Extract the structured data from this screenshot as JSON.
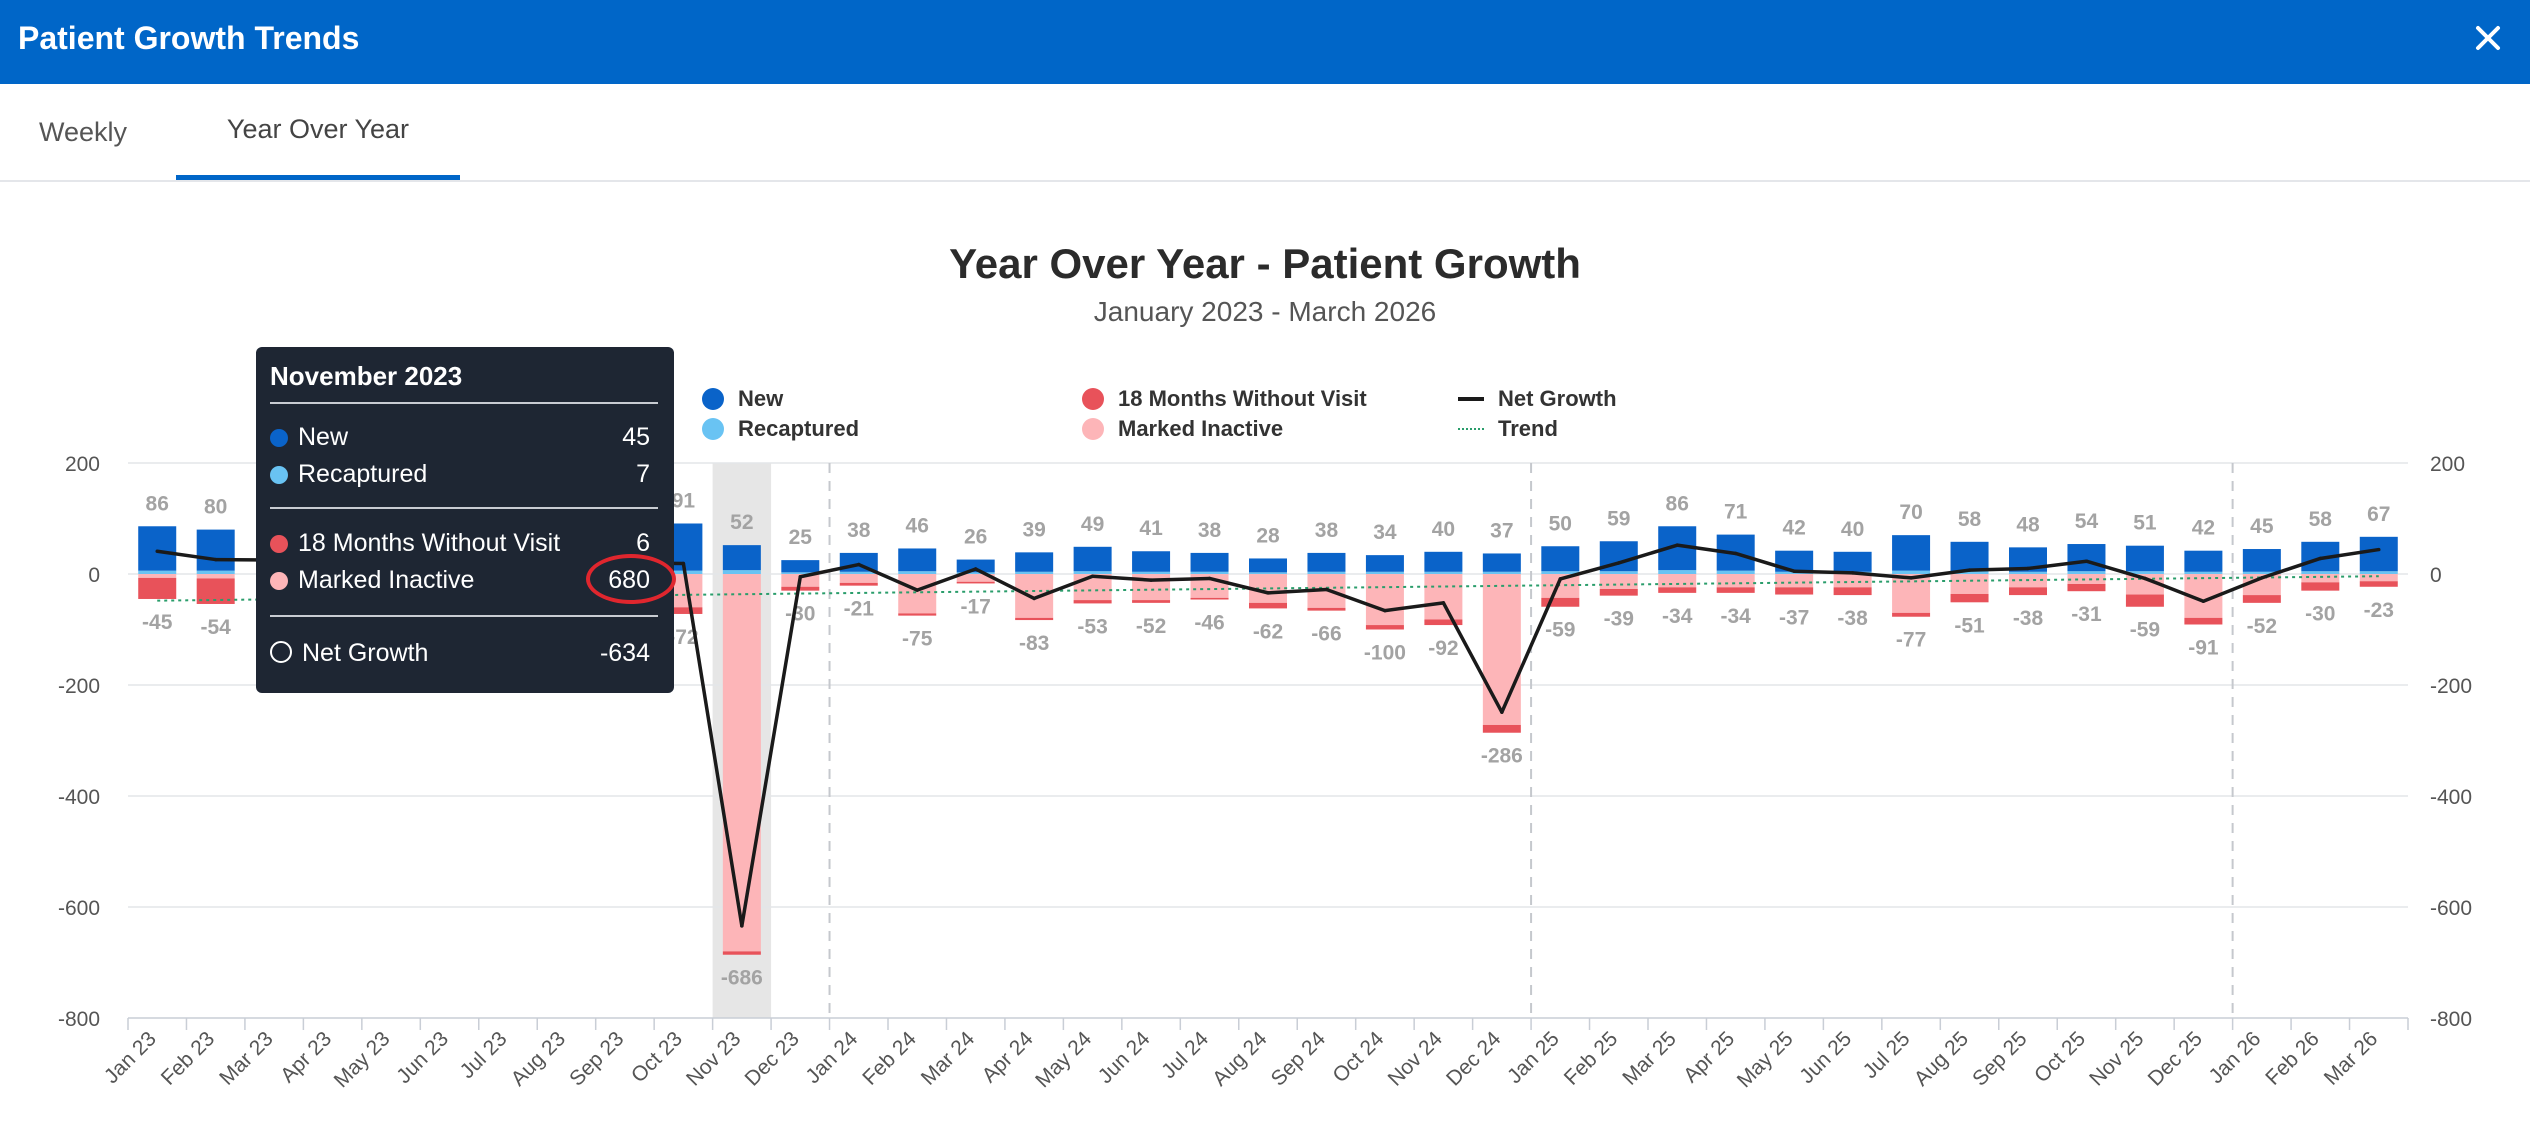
{
  "window": {
    "title": "Patient Growth Trends",
    "close_icon": "close-icon"
  },
  "tabs": [
    {
      "label": "Weekly",
      "active": false
    },
    {
      "label": "Year Over Year",
      "active": true
    }
  ],
  "colors": {
    "header": "#0066c8",
    "new": "#0a63c9",
    "recaptured": "#69c3f3",
    "months18": "#e8525a",
    "inactive": "#fdb5b8",
    "net": "#1a1a1a",
    "trend": "#2a9d6b",
    "highlight": "#e0262e"
  },
  "legend": {
    "new": "New",
    "recaptured": "Recaptured",
    "months18": "18 Months Without Visit",
    "inactive": "Marked Inactive",
    "net": "Net Growth",
    "trend": "Trend"
  },
  "tooltip": {
    "title": "November 2023",
    "new_label": "New",
    "new_value": "45",
    "recaptured_label": "Recaptured",
    "recaptured_value": "7",
    "months18_label": "18 Months Without Visit",
    "months18_value": "6",
    "inactive_label": "Marked Inactive",
    "inactive_value": "680",
    "net_label": "Net Growth",
    "net_value": "-634"
  },
  "chart_data": {
    "type": "bar",
    "title": "Year Over Year - Patient Growth",
    "subtitle": "January 2023 - March 2026",
    "ylim": [
      -800,
      200
    ],
    "yticks": [
      200,
      0,
      -200,
      -400,
      -600,
      -800
    ],
    "highlighted_category": "Nov 23",
    "year_dividers_after": [
      "Dec 23",
      "Dec 24",
      "Dec 25"
    ],
    "categories": [
      "Jan 23",
      "Feb 23",
      "Mar 23",
      "Apr 23",
      "May 23",
      "Jun 23",
      "Jul 23",
      "Aug 23",
      "Sep 23",
      "Oct 23",
      "Nov 23",
      "Dec 23",
      "Jan 24",
      "Feb 24",
      "Mar 24",
      "Apr 24",
      "May 24",
      "Jun 24",
      "Jul 24",
      "Aug 24",
      "Sep 24",
      "Oct 24",
      "Nov 24",
      "Dec 24",
      "Jan 25",
      "Feb 25",
      "Mar 25",
      "Apr 25",
      "May 25",
      "Jun 25",
      "Jul 25",
      "Aug 25",
      "Sep 25",
      "Oct 25",
      "Nov 25",
      "Dec 25",
      "Jan 26",
      "Feb 26",
      "Mar 26"
    ],
    "visible_categories": [
      true,
      true,
      false,
      false,
      false,
      false,
      false,
      false,
      false,
      true,
      true,
      true,
      true,
      true,
      true,
      true,
      true,
      true,
      true,
      true,
      true,
      true,
      true,
      true,
      true,
      true,
      true,
      true,
      true,
      true,
      true,
      true,
      true,
      true,
      true,
      true,
      true,
      true,
      true
    ],
    "positive_totals": [
      86,
      80,
      0,
      0,
      0,
      0,
      0,
      0,
      0,
      91,
      52,
      25,
      38,
      46,
      26,
      39,
      49,
      41,
      38,
      28,
      38,
      34,
      40,
      37,
      50,
      59,
      86,
      71,
      42,
      40,
      70,
      58,
      48,
      54,
      51,
      42,
      45,
      58,
      67
    ],
    "negative_totals": [
      -45,
      -54,
      0,
      0,
      0,
      0,
      0,
      0,
      0,
      -72,
      -686,
      -30,
      -21,
      -75,
      -17,
      -83,
      -53,
      -52,
      -46,
      -62,
      -66,
      -100,
      -92,
      -286,
      -59,
      -39,
      -34,
      -34,
      -37,
      -38,
      -77,
      -51,
      -38,
      -31,
      -59,
      -91,
      -52,
      -30,
      -23
    ],
    "series": [
      {
        "name": "New",
        "values": [
          80,
          74,
          0,
          0,
          0,
          0,
          0,
          0,
          0,
          85,
          45,
          22,
          34,
          41,
          23,
          35,
          44,
          37,
          34,
          25,
          34,
          30,
          36,
          33,
          45,
          54,
          79,
          65,
          38,
          36,
          64,
          53,
          44,
          49,
          46,
          38,
          41,
          53,
          62
        ]
      },
      {
        "name": "Recaptured",
        "values": [
          6,
          6,
          0,
          0,
          0,
          0,
          0,
          0,
          0,
          6,
          7,
          3,
          4,
          5,
          3,
          4,
          5,
          4,
          4,
          3,
          4,
          4,
          4,
          4,
          5,
          5,
          7,
          6,
          4,
          4,
          6,
          5,
          4,
          5,
          5,
          4,
          4,
          5,
          5
        ]
      },
      {
        "name": "18 Months Without Visit",
        "values": [
          -38,
          -46,
          0,
          0,
          0,
          0,
          0,
          0,
          0,
          -12,
          -6,
          -7,
          -5,
          -4,
          -3,
          -4,
          -6,
          -5,
          -3,
          -10,
          -5,
          -8,
          -10,
          -14,
          -16,
          -12,
          -10,
          -10,
          -13,
          -14,
          -7,
          -15,
          -14,
          -13,
          -22,
          -12,
          -14,
          -15,
          -10
        ]
      },
      {
        "name": "Marked Inactive",
        "values": [
          -7,
          -8,
          0,
          0,
          0,
          0,
          0,
          0,
          0,
          -60,
          -680,
          -23,
          -16,
          -71,
          -14,
          -79,
          -47,
          -47,
          -43,
          -52,
          -61,
          -92,
          -82,
          -272,
          -43,
          -27,
          -24,
          -24,
          -24,
          -24,
          -70,
          -36,
          -24,
          -18,
          -37,
          -79,
          -38,
          -15,
          -13
        ]
      },
      {
        "name": "Net Growth",
        "values": [
          41,
          26,
          null,
          null,
          null,
          null,
          null,
          null,
          null,
          19,
          -634,
          -5,
          17,
          -29,
          9,
          -44,
          -4,
          -11,
          -8,
          -34,
          -28,
          -66,
          -52,
          -249,
          -9,
          20,
          52,
          37,
          5,
          2,
          -7,
          7,
          10,
          23,
          -8,
          -49,
          -7,
          28,
          44
        ]
      },
      {
        "name": "Trend",
        "values_start_end": [
          -48,
          -4
        ]
      }
    ]
  }
}
